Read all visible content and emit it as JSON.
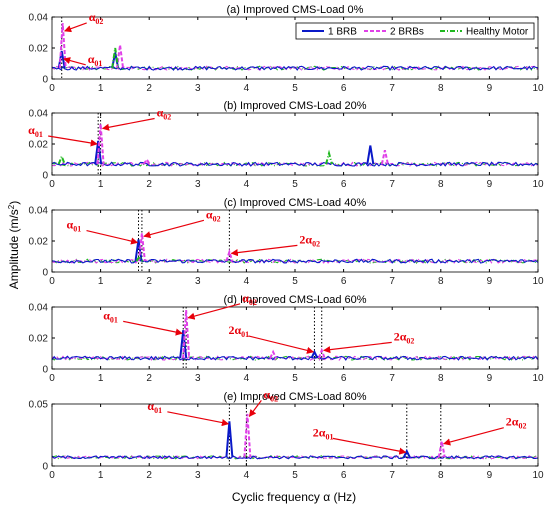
{
  "chart_data": {
    "type": "line",
    "xlabel": "Cyclic frequency α (Hz)",
    "ylabel": "Amplitude (m/s²)",
    "xlim": [
      0,
      10
    ],
    "xticks": [
      0,
      1,
      2,
      3,
      4,
      5,
      6,
      7,
      8,
      9,
      10
    ],
    "legend": {
      "placement": "top-right",
      "entries": [
        {
          "name": "1 BRB",
          "color": "#0a19c8",
          "style": "solid"
        },
        {
          "name": "2 BRBs",
          "color": "#e040e8",
          "style": "dashed"
        },
        {
          "name": "Healthy Motor",
          "color": "#20b820",
          "style": "dashdot"
        }
      ]
    },
    "noise": {
      "baseline": 0.007,
      "amplitude": 0.0012
    },
    "panels": [
      {
        "title": "(a) Improved CMS-Load 0%",
        "ylim": [
          0,
          0.04
        ],
        "yticks": [
          "0",
          "0.02",
          "0.04"
        ],
        "yvals": [
          0,
          0.02,
          0.04
        ],
        "vlines": [
          0.2
        ],
        "peaks": [
          {
            "series": "1 BRB",
            "x": 0.2,
            "y": 0.018
          },
          {
            "series": "2 BRBs",
            "x": 0.22,
            "y": 0.036
          },
          {
            "series": "1 BRB",
            "x": 1.3,
            "y": 0.017
          },
          {
            "series": "2 BRBs",
            "x": 1.4,
            "y": 0.022
          },
          {
            "series": "Healthy Motor",
            "x": 1.3,
            "y": 0.02
          }
        ],
        "annotations": [
          {
            "greek": "α",
            "sub": "02",
            "x": 0.22,
            "y": 0.031
          },
          {
            "greek": "α",
            "sub": "01",
            "x": 0.2,
            "y": 0.013
          }
        ]
      },
      {
        "title": "(b) Improved CMS-Load 20%",
        "ylim": [
          0,
          0.04
        ],
        "yticks": [
          "0",
          "0.02",
          "0.04"
        ],
        "yvals": [
          0,
          0.02,
          0.04
        ],
        "vlines": [
          0.95,
          1.0
        ],
        "peaks": [
          {
            "series": "1 BRB",
            "x": 0.95,
            "y": 0.022
          },
          {
            "series": "2 BRBs",
            "x": 1.0,
            "y": 0.033
          },
          {
            "series": "1 BRB",
            "x": 6.55,
            "y": 0.019
          },
          {
            "series": "2 BRBs",
            "x": 6.85,
            "y": 0.016
          },
          {
            "series": "Healthy Motor",
            "x": 5.7,
            "y": 0.014
          },
          {
            "series": "Healthy Motor",
            "x": 0.2,
            "y": 0.012
          },
          {
            "series": "2 BRBs",
            "x": 1.95,
            "y": 0.01
          }
        ],
        "annotations": [
          {
            "greek": "α",
            "sub": "01",
            "x": 0.95,
            "y": 0.02
          },
          {
            "greek": "α",
            "sub": "02",
            "x": 1.0,
            "y": 0.03
          }
        ]
      },
      {
        "title": "(c) Improved CMS-Load 40%",
        "ylim": [
          0,
          0.04
        ],
        "yticks": [
          "0",
          "0.02",
          "0.04"
        ],
        "yvals": [
          0,
          0.02,
          0.04
        ],
        "vlines": [
          1.78,
          1.85,
          3.65
        ],
        "peaks": [
          {
            "series": "1 BRB",
            "x": 1.78,
            "y": 0.021
          },
          {
            "series": "2 BRBs",
            "x": 1.85,
            "y": 0.025
          },
          {
            "series": "2 BRBs",
            "x": 3.65,
            "y": 0.013
          },
          {
            "series": "Healthy Motor",
            "x": 1.8,
            "y": 0.01
          }
        ],
        "annotations": [
          {
            "greek": "α",
            "sub": "01",
            "x": 1.78,
            "y": 0.019
          },
          {
            "greek": "α",
            "sub": "02",
            "x": 1.85,
            "y": 0.023
          },
          {
            "greek": "2α",
            "sub": "02",
            "x": 3.65,
            "y": 0.012
          }
        ]
      },
      {
        "title": "(d) Improved CMS-Load 60%",
        "ylim": [
          0,
          0.04
        ],
        "yticks": [
          "0",
          "0.02",
          "0.04"
        ],
        "yvals": [
          0,
          0.02,
          0.04
        ],
        "vlines": [
          2.7,
          2.76,
          5.4,
          5.55
        ],
        "peaks": [
          {
            "series": "1 BRB",
            "x": 2.7,
            "y": 0.025
          },
          {
            "series": "2 BRBs",
            "x": 2.76,
            "y": 0.038
          },
          {
            "series": "1 BRB",
            "x": 5.4,
            "y": 0.011
          },
          {
            "series": "2 BRBs",
            "x": 5.55,
            "y": 0.012
          },
          {
            "series": "2 BRBs",
            "x": 4.55,
            "y": 0.011
          }
        ],
        "annotations": [
          {
            "greek": "α",
            "sub": "01",
            "x": 2.7,
            "y": 0.023
          },
          {
            "greek": "α",
            "sub": "02",
            "x": 2.76,
            "y": 0.033
          },
          {
            "greek": "2α",
            "sub": "01",
            "x": 5.4,
            "y": 0.011
          },
          {
            "greek": "2α",
            "sub": "02",
            "x": 5.55,
            "y": 0.012
          }
        ]
      },
      {
        "title": "(e) Improved CMS-Load 80%",
        "ylim": [
          0,
          0.05
        ],
        "yticks": [
          "0",
          "0.05"
        ],
        "yvals": [
          0,
          0.05
        ],
        "vlines": [
          3.65,
          4.0,
          7.3,
          8.0
        ],
        "peaks": [
          {
            "series": "1 BRB",
            "x": 3.65,
            "y": 0.036
          },
          {
            "series": "2 BRBs",
            "x": 4.02,
            "y": 0.042
          },
          {
            "series": "1 BRB",
            "x": 7.3,
            "y": 0.012
          },
          {
            "series": "2 BRBs",
            "x": 8.02,
            "y": 0.02
          }
        ],
        "annotations": [
          {
            "greek": "α",
            "sub": "01",
            "x": 3.65,
            "y": 0.034
          },
          {
            "greek": "α",
            "sub": "02",
            "x": 4.02,
            "y": 0.04
          },
          {
            "greek": "2α",
            "sub": "01",
            "x": 7.3,
            "y": 0.011
          },
          {
            "greek": "2α",
            "sub": "02",
            "x": 8.02,
            "y": 0.018
          }
        ]
      }
    ]
  }
}
